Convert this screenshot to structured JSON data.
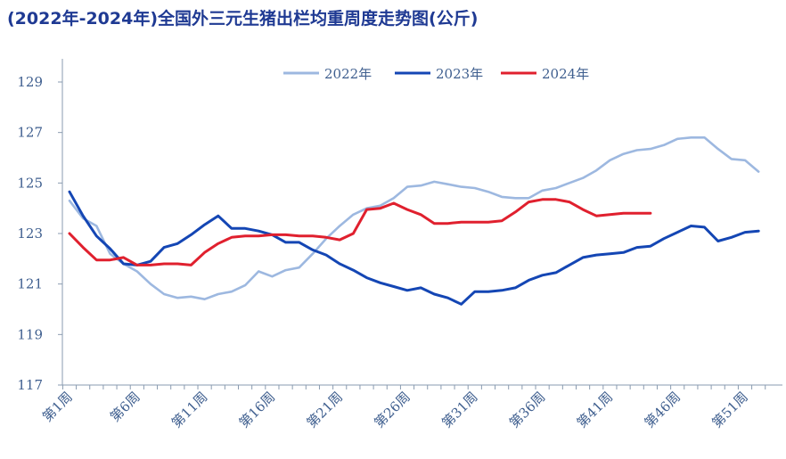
{
  "title": "(2022年-2024年)全国外三元生猪出栏均重周度走势图(公斤)",
  "chart_data": {
    "type": "line",
    "title": "(2022年-2024年)全国外三元生猪出栏均重周度走势图(公斤)",
    "xlabel": "",
    "ylabel": "",
    "ylim": [
      117,
      129
    ],
    "yticks": [
      117,
      119,
      121,
      123,
      125,
      127,
      129
    ],
    "xticks": [
      {
        "week": 1,
        "label": "第1周"
      },
      {
        "week": 6,
        "label": "第6周"
      },
      {
        "week": 11,
        "label": "第11周"
      },
      {
        "week": 16,
        "label": "第16周"
      },
      {
        "week": 21,
        "label": "第21周"
      },
      {
        "week": 26,
        "label": "第26周"
      },
      {
        "week": 31,
        "label": "第31周"
      },
      {
        "week": 36,
        "label": "第36周"
      },
      {
        "week": 41,
        "label": "第41周"
      },
      {
        "week": 46,
        "label": "第46周"
      },
      {
        "week": 51,
        "label": "第51周"
      }
    ],
    "grid": false,
    "legend_position": "top",
    "series": [
      {
        "name": "2022年",
        "color": "#9db8e0",
        "x": [
          1,
          2,
          3,
          4,
          5,
          6,
          7,
          8,
          9,
          10,
          11,
          12,
          13,
          14,
          15,
          16,
          17,
          18,
          19,
          20,
          21,
          22,
          23,
          24,
          25,
          26,
          27,
          28,
          29,
          30,
          31,
          32,
          33,
          34,
          35,
          36,
          37,
          38,
          39,
          40,
          41,
          42,
          43,
          44,
          45,
          46,
          47,
          48,
          49,
          50,
          51,
          52
        ],
        "values": [
          124.3,
          123.6,
          123.3,
          122.2,
          121.8,
          121.5,
          121.0,
          120.6,
          120.45,
          120.5,
          120.4,
          120.6,
          120.7,
          120.95,
          121.5,
          121.3,
          121.55,
          121.65,
          122.2,
          122.8,
          123.3,
          123.75,
          124.0,
          124.1,
          124.4,
          124.85,
          124.9,
          125.05,
          124.95,
          124.85,
          124.8,
          124.65,
          124.45,
          124.4,
          124.4,
          124.7,
          124.8,
          125.0,
          125.2,
          125.5,
          125.9,
          126.15,
          126.3,
          126.35,
          126.5,
          126.75,
          126.8,
          126.8,
          126.35,
          125.95,
          125.9,
          125.45
        ]
      },
      {
        "name": "2023年",
        "color": "#1446b4",
        "x": [
          1,
          2,
          3,
          4,
          5,
          6,
          7,
          8,
          9,
          10,
          11,
          12,
          13,
          14,
          15,
          16,
          17,
          18,
          19,
          20,
          21,
          22,
          23,
          24,
          25,
          26,
          27,
          28,
          29,
          30,
          31,
          32,
          33,
          34,
          35,
          36,
          37,
          38,
          39,
          40,
          41,
          42,
          43,
          44,
          45,
          46,
          47,
          48,
          49,
          50,
          51,
          52
        ],
        "values": [
          124.65,
          123.7,
          122.9,
          122.4,
          121.8,
          121.75,
          121.9,
          122.45,
          122.6,
          122.95,
          123.35,
          123.7,
          123.2,
          123.2,
          123.1,
          122.95,
          122.65,
          122.65,
          122.35,
          122.15,
          121.8,
          121.55,
          121.25,
          121.05,
          120.9,
          120.75,
          120.85,
          120.6,
          120.45,
          120.2,
          120.7,
          120.7,
          120.75,
          120.85,
          121.15,
          121.35,
          121.45,
          121.75,
          122.05,
          122.15,
          122.2,
          122.25,
          122.45,
          122.5,
          122.8,
          123.05,
          123.3,
          123.25,
          122.7,
          122.85,
          123.05,
          123.1
        ]
      },
      {
        "name": "2024年",
        "color": "#e0202e",
        "x": [
          1,
          2,
          3,
          4,
          5,
          6,
          7,
          8,
          9,
          10,
          11,
          12,
          13,
          14,
          15,
          16,
          17,
          18,
          19,
          20,
          21,
          22,
          23,
          24,
          25,
          26,
          27,
          28,
          29,
          30,
          31,
          32,
          33,
          34,
          35,
          36,
          37,
          38,
          39,
          40,
          41,
          42,
          43,
          44
        ],
        "values": [
          123.0,
          122.45,
          121.95,
          121.95,
          122.05,
          121.75,
          121.75,
          121.8,
          121.8,
          121.75,
          122.25,
          122.6,
          122.85,
          122.9,
          122.9,
          122.95,
          122.95,
          122.9,
          122.9,
          122.85,
          122.75,
          123.0,
          123.95,
          124.0,
          124.2,
          123.95,
          123.75,
          123.4,
          123.4,
          123.45,
          123.45,
          123.45,
          123.5,
          123.85,
          124.25,
          124.35,
          124.35,
          124.25,
          123.95,
          123.7,
          123.75,
          123.8,
          123.8,
          123.8
        ]
      }
    ]
  }
}
